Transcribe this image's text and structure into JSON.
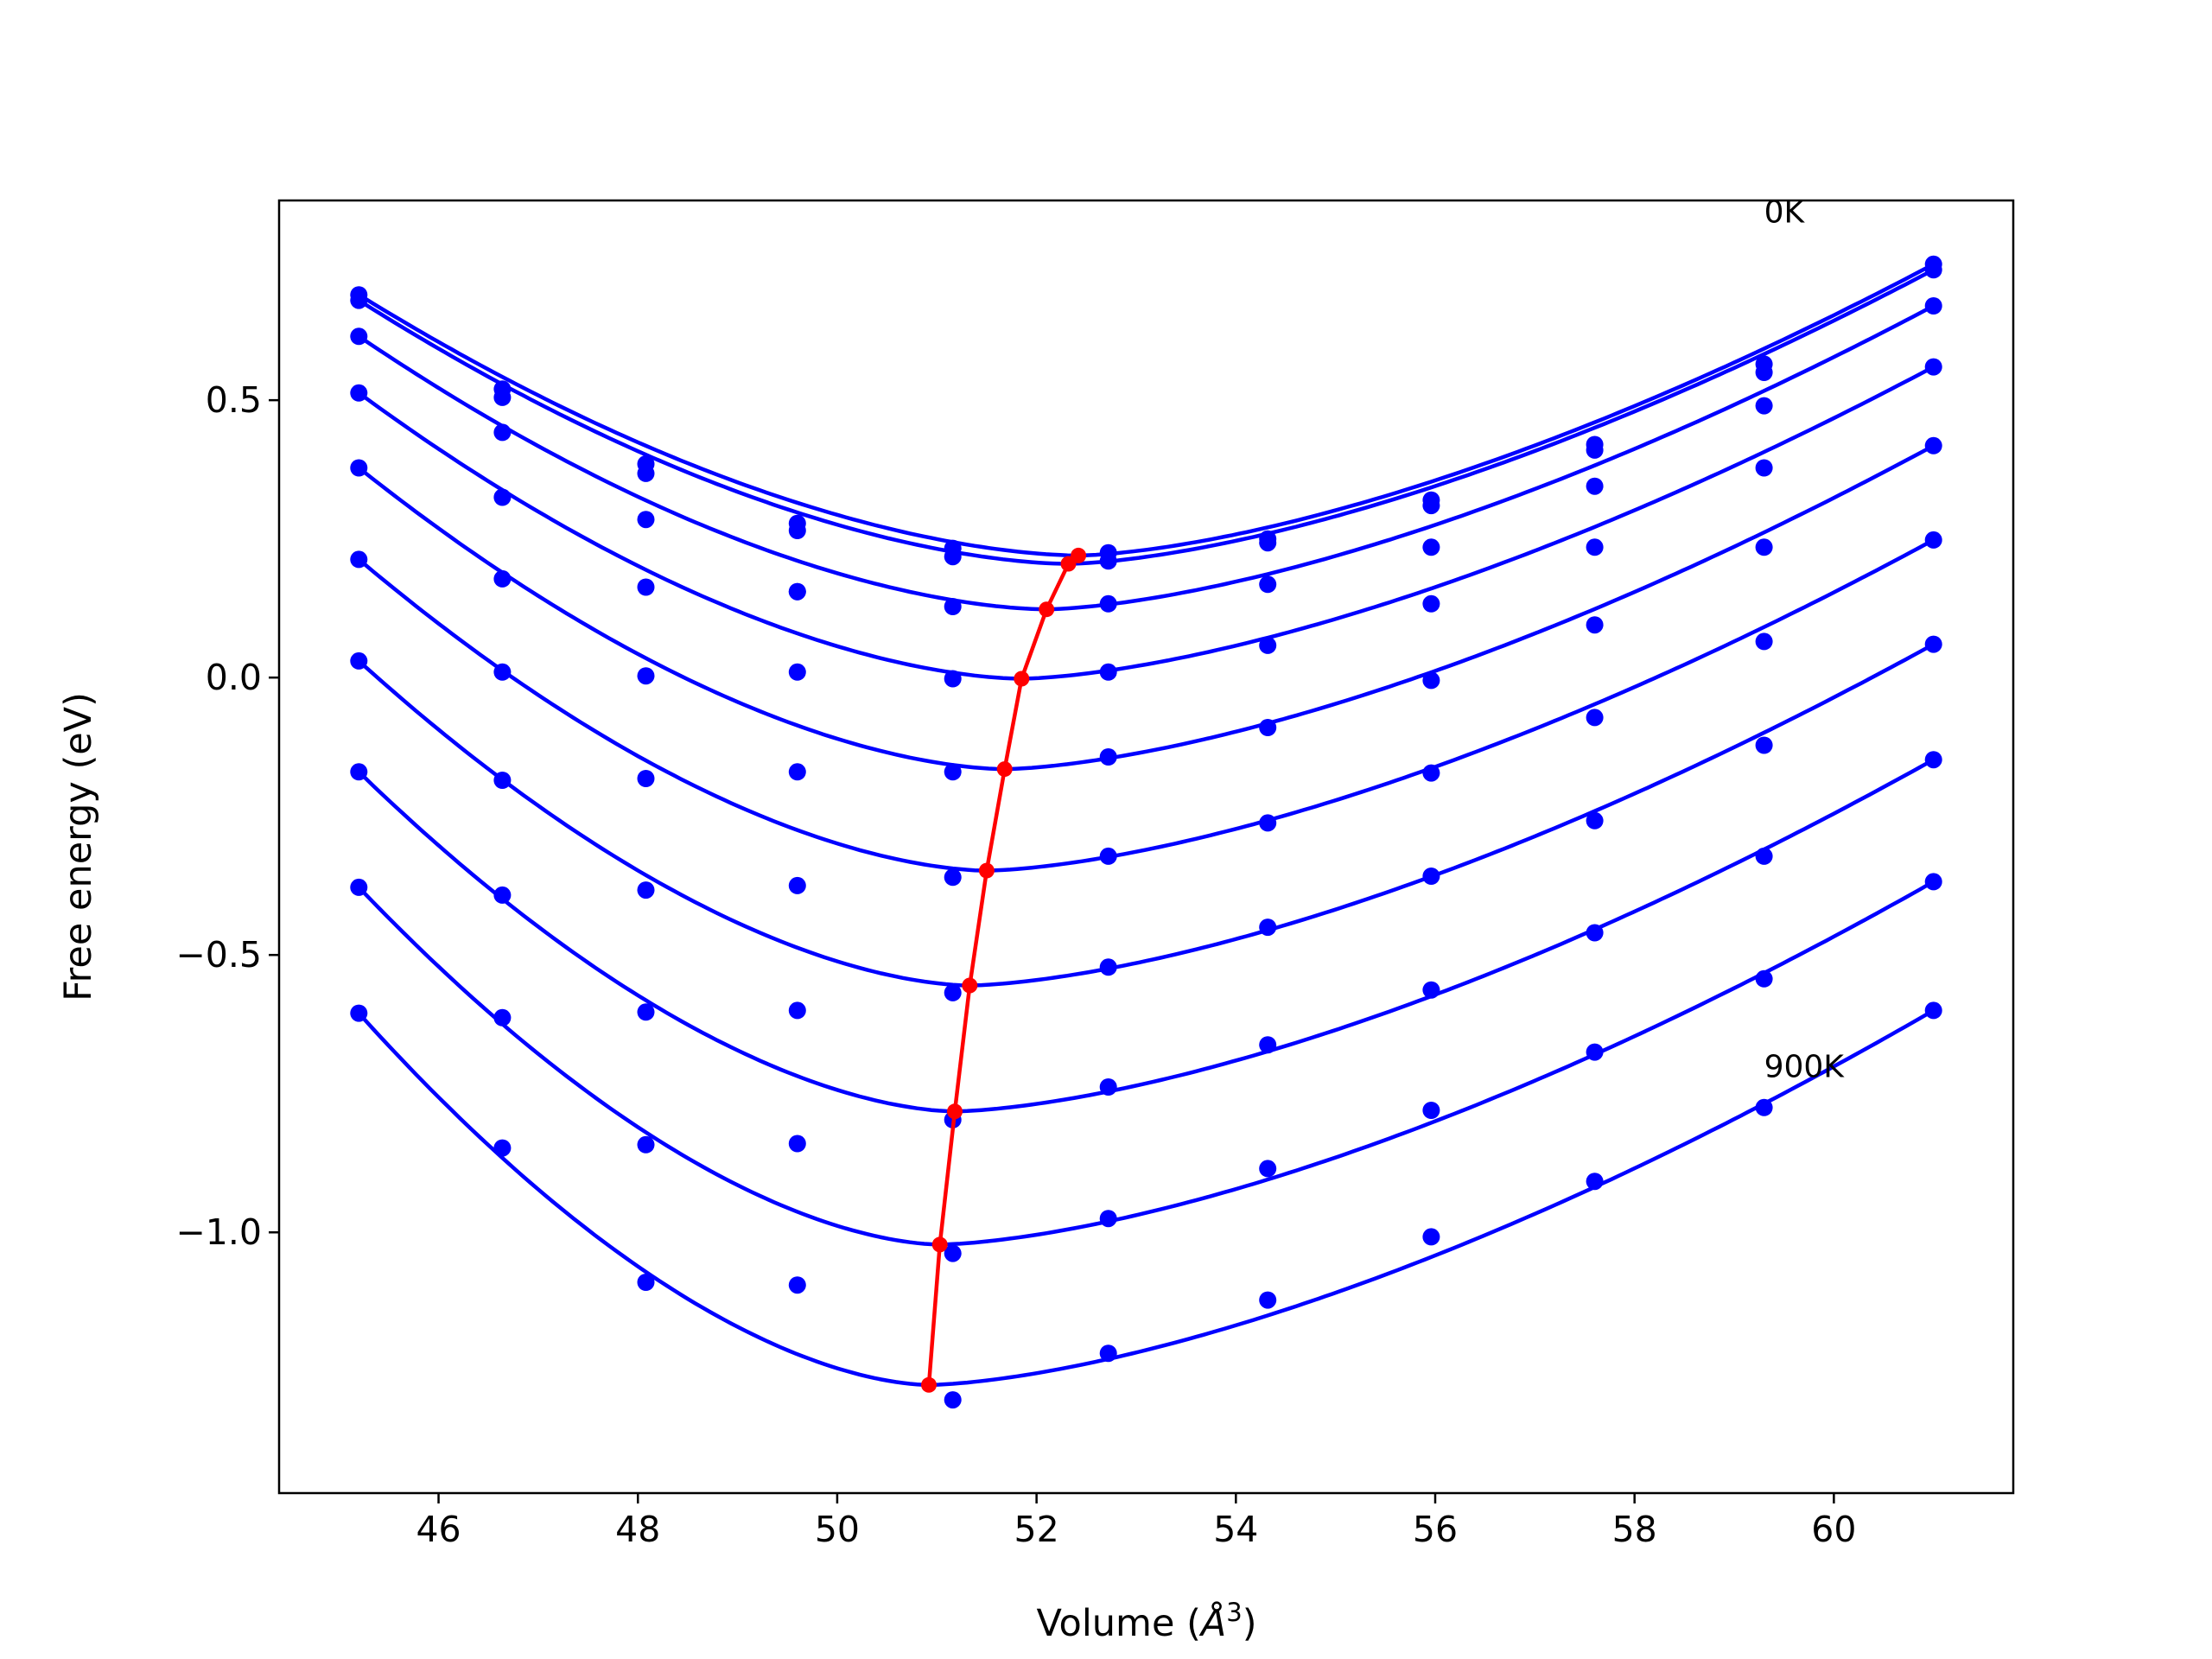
{
  "chart_data": {
    "type": "line",
    "xlabel": "Volume",
    "xlabel_unit_base": "Å",
    "xlabel_unit_exp": "3",
    "ylabel": "Free energy (eV)",
    "xlim": [
      44.4,
      61.8
    ],
    "ylim": [
      -1.47,
      0.86
    ],
    "x_ticks": [
      46,
      48,
      50,
      52,
      54,
      56,
      58,
      60
    ],
    "y_ticks": [
      -1.0,
      -0.5,
      0.0,
      0.5
    ],
    "y_tick_labels": [
      "−1.0",
      "−0.5",
      "0.0",
      "0.5"
    ],
    "grid": false,
    "legend": "none",
    "colors": {
      "fit": "#0000ff",
      "points": "#0000ff",
      "minima": "#ff0000"
    },
    "annotations": [
      {
        "text": "0K",
        "x": 59.3,
        "y": 0.82
      },
      {
        "text": "900K",
        "x": 59.3,
        "y": -0.72
      }
    ],
    "volumes": [
      45.2,
      46.64,
      48.08,
      49.6,
      51.16,
      52.72,
      54.32,
      55.96,
      57.6,
      59.3,
      61.0
    ],
    "series": [
      {
        "values": [
          0.69,
          0.52,
          0.385,
          0.278,
          0.233,
          0.225,
          0.25,
          0.32,
          0.42,
          0.565,
          0.745
        ],
        "min_v": 52.42,
        "min_f": 0.22
      },
      {
        "values": [
          0.68,
          0.505,
          0.368,
          0.265,
          0.218,
          0.21,
          0.243,
          0.31,
          0.41,
          0.55,
          0.735
        ],
        "min_v": 52.32,
        "min_f": 0.205
      },
      {
        "values": [
          0.615,
          0.442,
          0.285,
          0.155,
          0.128,
          0.133,
          0.168,
          0.235,
          0.345,
          0.49,
          0.67
        ],
        "min_v": 52.1,
        "min_f": 0.123
      },
      {
        "values": [
          0.513,
          0.325,
          0.163,
          0.155,
          -0.002,
          0.01,
          0.058,
          0.133,
          0.235,
          0.378,
          0.56
        ],
        "min_v": 51.85,
        "min_f": -0.002
      },
      {
        "values": [
          0.378,
          0.178,
          0.003,
          0.01,
          -0.17,
          -0.143,
          -0.09,
          -0.005,
          0.095,
          0.235,
          0.418
        ],
        "min_v": 51.68,
        "min_f": -0.165
      },
      {
        "values": [
          0.213,
          0.01,
          -0.182,
          -0.17,
          -0.36,
          -0.322,
          -0.262,
          -0.172,
          -0.072,
          0.065,
          0.248
        ],
        "min_v": 51.5,
        "min_f": -0.348
      },
      {
        "values": [
          0.03,
          -0.185,
          -0.383,
          -0.375,
          -0.568,
          -0.522,
          -0.45,
          -0.358,
          -0.258,
          -0.122,
          0.06
        ],
        "min_v": 51.33,
        "min_f": -0.555
      },
      {
        "values": [
          -0.17,
          -0.392,
          -0.603,
          -0.6,
          -0.797,
          -0.738,
          -0.662,
          -0.563,
          -0.46,
          -0.322,
          -0.148
        ],
        "min_v": 51.18,
        "min_f": -0.782
      },
      {
        "values": [
          -0.378,
          -0.613,
          -0.842,
          -0.84,
          -1.038,
          -0.975,
          -0.885,
          -0.78,
          -0.675,
          -0.543,
          -0.368
        ],
        "min_v": 51.03,
        "min_f": -1.022
      },
      {
        "values": [
          -0.605,
          -0.848,
          -1.09,
          -1.095,
          -1.302,
          -1.218,
          -1.122,
          -1.008,
          -0.908,
          -0.775,
          -0.6
        ],
        "min_v": 50.92,
        "min_f": -1.275
      }
    ]
  }
}
